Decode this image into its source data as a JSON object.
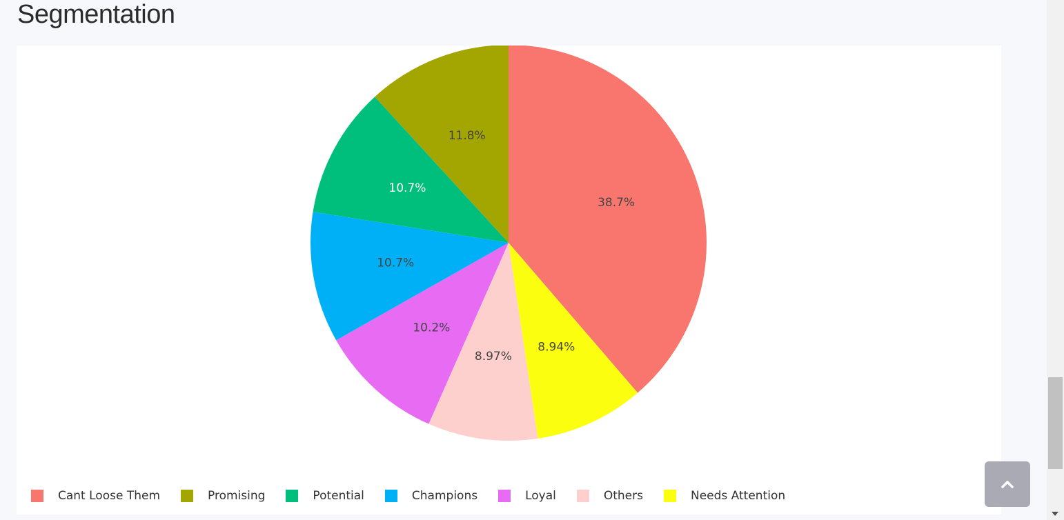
{
  "page": {
    "section_title": "Segmentation"
  },
  "chart_data": {
    "type": "pie",
    "title": "",
    "direction": "clockwise",
    "start_angle": "top",
    "legend_position": "bottom",
    "slices": [
      {
        "name": "Cant Loose Them",
        "value": 38.7,
        "label": "38.7%",
        "color": "#f8766d",
        "text_color": "#444444"
      },
      {
        "name": "Needs Attention",
        "value": 8.94,
        "label": "8.94%",
        "color": "#fbff0f",
        "text_color": "#444444"
      },
      {
        "name": "Others",
        "value": 8.97,
        "label": "8.97%",
        "color": "#fdd0cd",
        "text_color": "#444444"
      },
      {
        "name": "Loyal",
        "value": 10.2,
        "label": "10.2%",
        "color": "#e76bf3",
        "text_color": "#444444"
      },
      {
        "name": "Champions",
        "value": 10.7,
        "label": "10.7%",
        "color": "#00b0f6",
        "text_color": "#444444"
      },
      {
        "name": "Potential",
        "value": 10.7,
        "label": "10.7%",
        "color": "#00bf7d",
        "text_color": "#ffffff"
      },
      {
        "name": "Promising",
        "value": 11.8,
        "label": "11.8%",
        "color": "#a3a500",
        "text_color": "#444444"
      }
    ],
    "legend_order": [
      "Cant Loose Them",
      "Promising",
      "Potential",
      "Champions",
      "Loyal",
      "Others",
      "Needs Attention"
    ]
  },
  "controls": {
    "back_to_top_icon": "chevron-up-icon"
  }
}
